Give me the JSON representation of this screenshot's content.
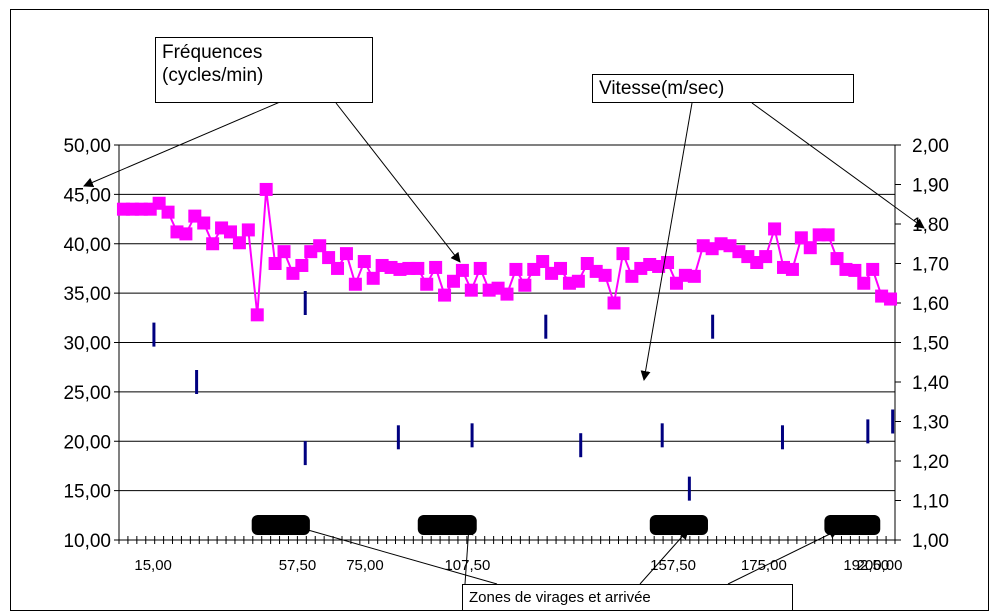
{
  "chart_data": {
    "type": "line",
    "x_ticks": [
      "15,00",
      "57,50",
      "75,00",
      "107,50",
      "157,50",
      "175,00",
      "192,50",
      "200,00"
    ],
    "y_left": {
      "range": [
        10,
        50
      ],
      "ticks": [
        "10,00",
        "15,00",
        "20,00",
        "25,00",
        "30,00",
        "35,00",
        "40,00",
        "45,00",
        "50,00"
      ]
    },
    "y_right": {
      "range": [
        1.0,
        2.0
      ],
      "ticks": [
        "1,00",
        "1,10",
        "1,20",
        "1,30",
        "1,40",
        "1,50",
        "1,60",
        "1,70",
        "1,80",
        "1,90",
        "2,00"
      ]
    },
    "grid": "horizontal",
    "series": [
      {
        "axis": "left",
        "color": "#ff00ff",
        "marker": "square",
        "values": [
          43.5,
          43.5,
          43.5,
          43.5,
          44.1,
          43.2,
          41.2,
          41.0,
          42.8,
          42.1,
          40.0,
          41.6,
          41.2,
          40.1,
          41.4,
          32.8,
          45.5,
          38.0,
          39.2,
          37.0,
          37.8,
          39.2,
          39.8,
          38.6,
          37.5,
          39.0,
          35.9,
          38.2,
          36.5,
          37.8,
          37.6,
          37.4,
          37.5,
          37.5,
          35.9,
          37.6,
          34.8,
          36.2,
          37.3,
          35.3,
          37.5,
          35.3,
          35.5,
          34.9,
          37.4,
          35.8,
          37.4,
          38.2,
          37.0,
          37.5,
          36.0,
          36.2,
          38.0,
          37.2,
          36.8,
          34.0,
          39.0,
          36.7,
          37.5,
          37.9,
          37.7,
          38.1,
          36.0,
          36.8,
          36.7,
          39.8,
          39.5,
          40.0,
          39.8,
          39.2,
          38.7,
          38.1,
          38.7,
          41.5,
          37.6,
          37.4,
          40.6,
          39.6,
          40.9,
          40.9,
          38.5,
          37.4,
          37.3,
          36.0,
          37.4,
          34.7,
          34.4
        ]
      },
      {
        "axis": "right",
        "color": "#000080",
        "marker": "dash",
        "points": [
          [
            0.045,
            1.52
          ],
          [
            0.1,
            1.4
          ],
          [
            0.24,
            1.6
          ],
          [
            0.24,
            1.22
          ],
          [
            0.36,
            1.26
          ],
          [
            0.455,
            1.265
          ],
          [
            0.55,
            1.54
          ],
          [
            0.595,
            1.24
          ],
          [
            0.7,
            1.265
          ],
          [
            0.735,
            1.13
          ],
          [
            0.765,
            1.54
          ],
          [
            0.855,
            1.26
          ],
          [
            0.965,
            1.275
          ],
          [
            0.997,
            1.3
          ]
        ]
      }
    ],
    "turn_zones": [
      [
        0.171,
        0.246
      ],
      [
        0.385,
        0.461
      ],
      [
        0.684,
        0.759
      ],
      [
        0.909,
        0.981
      ]
    ]
  },
  "annotations": {
    "freq_label_line1": "Fréquences",
    "freq_label_line2": "(cycles/min)",
    "speed_label": "Vitesse(m/sec)",
    "zones_label": "Zones de virages et arrivée"
  }
}
